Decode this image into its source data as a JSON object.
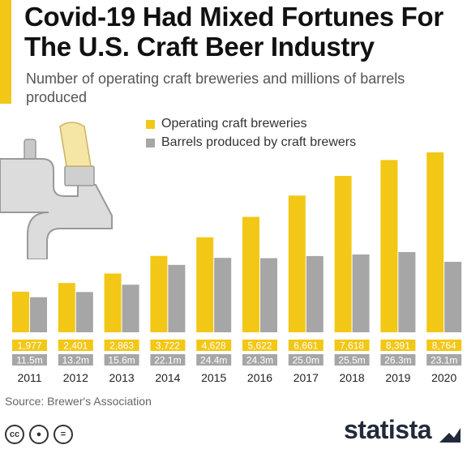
{
  "header": {
    "title": "Covid-19 Had Mixed Fortunes For The U.S. Craft Beer Industry",
    "subtitle": "Number of operating craft breweries and millions of barrels produced"
  },
  "legend": {
    "items": [
      {
        "label": "Operating craft breweries",
        "color": "#f2c716"
      },
      {
        "label": "Barrels produced by craft brewers",
        "color": "#a6a6a6"
      }
    ]
  },
  "chart_data": {
    "type": "bar",
    "title": "Covid-19 Had Mixed Fortunes For The U.S. Craft Beer Industry",
    "subtitle": "Number of operating craft breweries and millions of barrels produced",
    "categories": [
      "2011",
      "2012",
      "2013",
      "2014",
      "2015",
      "2016",
      "2017",
      "2018",
      "2019",
      "2020"
    ],
    "series": [
      {
        "name": "Operating craft breweries",
        "color": "#f2c716",
        "values": [
          1977,
          2401,
          2863,
          3722,
          4628,
          5622,
          6661,
          7618,
          8391,
          8764
        ],
        "labels": [
          "1,977",
          "2,401",
          "2,863",
          "3,722",
          "4,628",
          "5,622",
          "6,661",
          "7,618",
          "8,391",
          "8,764"
        ]
      },
      {
        "name": "Barrels produced by craft brewers",
        "color": "#a6a6a6",
        "values": [
          11.5,
          13.2,
          15.6,
          22.1,
          24.4,
          24.3,
          25.0,
          25.5,
          26.3,
          23.1
        ],
        "labels": [
          "11.5m",
          "13.2m",
          "15.6m",
          "22.1m",
          "24.4m",
          "24.3m",
          "25.0m",
          "25.5m",
          "26.3m",
          "23.1m"
        ]
      }
    ],
    "grid": false,
    "legend_position": "top-right"
  },
  "footer": {
    "source": "Source: Brewer's Association",
    "brand": "statista",
    "license_icons": [
      "cc-icon",
      "by-icon",
      "nd-icon"
    ]
  }
}
